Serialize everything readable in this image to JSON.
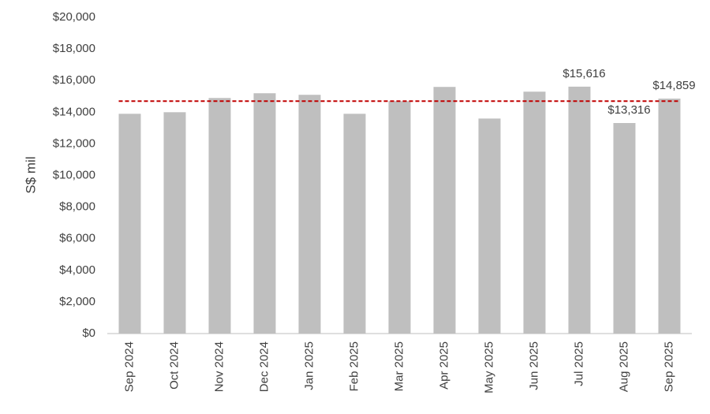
{
  "chart_data": {
    "type": "bar",
    "y_label": "S$ mil",
    "categories": [
      "Sep 2024",
      "Oct 2024",
      "Nov 2024",
      "Dec 2024",
      "Jan 2025",
      "Feb 2025",
      "Mar 2025",
      "Apr 2025",
      "May 2025",
      "Jun 2025",
      "Jul 2025",
      "Aug 2025",
      "Sep 2025"
    ],
    "values": [
      13900,
      14000,
      14900,
      15200,
      15100,
      13900,
      14700,
      15600,
      13600,
      15300,
      15616,
      13316,
      14859
    ],
    "value_labels": [
      null,
      null,
      null,
      null,
      null,
      null,
      null,
      null,
      null,
      null,
      "$15,616",
      "$13,316",
      "$14,859"
    ],
    "color": "#bfbfbf",
    "reference_line": 14700,
    "reference_color": "#c00000",
    "ylim": [
      0,
      20000
    ],
    "yticks": [
      {
        "value": 0,
        "label": "$0"
      },
      {
        "value": 2000,
        "label": "$2,000"
      },
      {
        "value": 4000,
        "label": "$4,000"
      },
      {
        "value": 6000,
        "label": "$6,000"
      },
      {
        "value": 8000,
        "label": "$8,000"
      },
      {
        "value": 10000,
        "label": "$10,000"
      },
      {
        "value": 12000,
        "label": "$12,000"
      },
      {
        "value": 14000,
        "label": "$14,000"
      },
      {
        "value": 16000,
        "label": "$16,000"
      },
      {
        "value": 18000,
        "label": "$18,000"
      },
      {
        "value": 20000,
        "label": "$20,000"
      }
    ],
    "grid": false
  }
}
